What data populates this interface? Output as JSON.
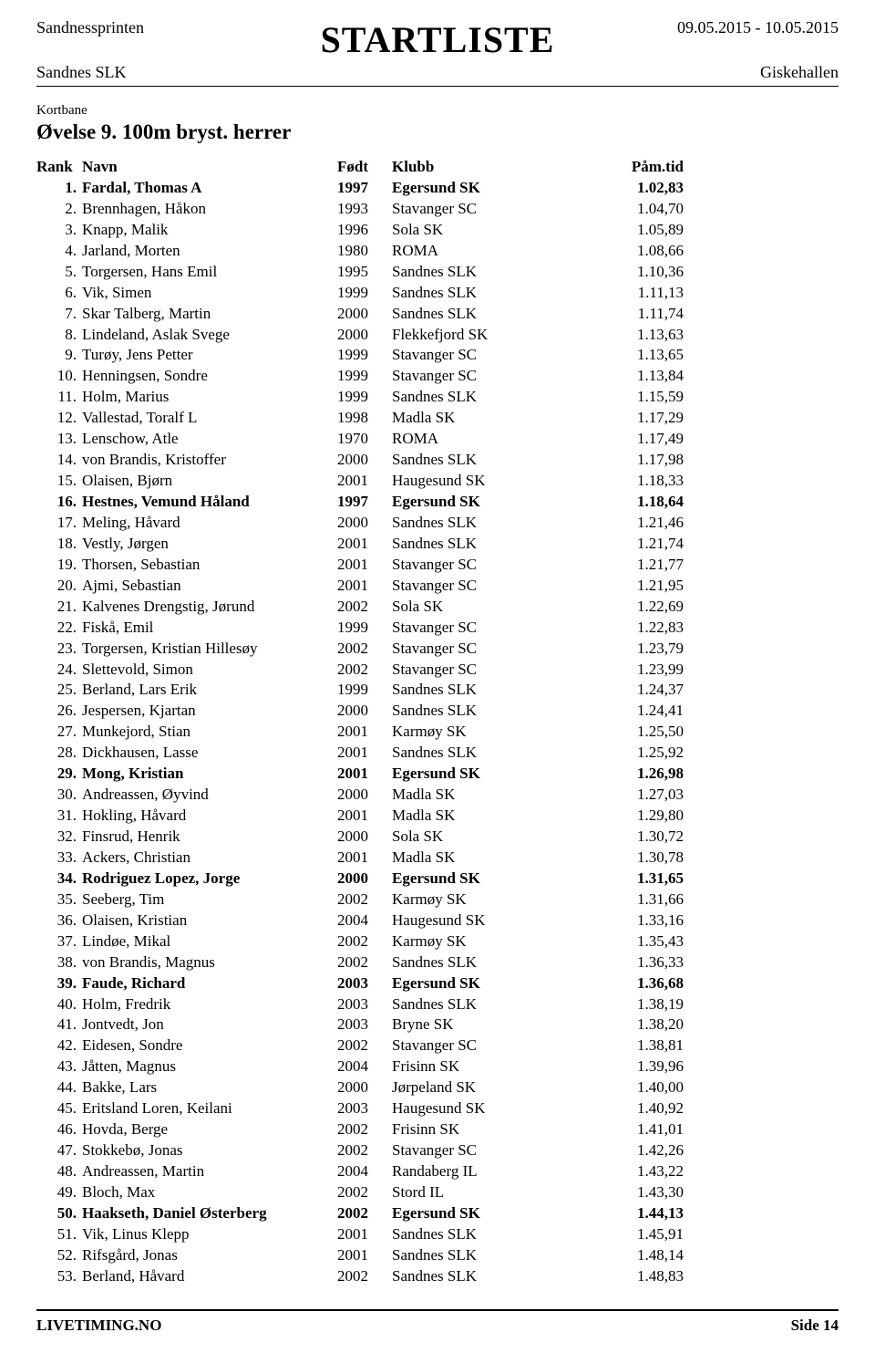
{
  "header": {
    "competition": "Sandnessprinten",
    "title": "STARTLISTE",
    "dates": "09.05.2015 - 10.05.2015",
    "club": "Sandnes SLK",
    "venue": "Giskehallen"
  },
  "meta": {
    "course": "Kortbane",
    "event_title": "Øvelse 9. 100m bryst. herrer"
  },
  "columns": {
    "rank": "Rank",
    "name": "Navn",
    "born": "Født",
    "club": "Klubb",
    "time": "Påm.tid"
  },
  "rows": [
    {
      "rank": "1.",
      "name": "Fardal, Thomas A",
      "born": "1997",
      "club": "Egersund SK",
      "time": "1.02,83",
      "bold": true
    },
    {
      "rank": "2.",
      "name": "Brennhagen, Håkon",
      "born": "1993",
      "club": "Stavanger SC",
      "time": "1.04,70",
      "bold": false
    },
    {
      "rank": "3.",
      "name": "Knapp, Malik",
      "born": "1996",
      "club": "Sola SK",
      "time": "1.05,89",
      "bold": false
    },
    {
      "rank": "4.",
      "name": "Jarland, Morten",
      "born": "1980",
      "club": "ROMA",
      "time": "1.08,66",
      "bold": false
    },
    {
      "rank": "5.",
      "name": "Torgersen, Hans Emil",
      "born": "1995",
      "club": "Sandnes SLK",
      "time": "1.10,36",
      "bold": false
    },
    {
      "rank": "6.",
      "name": "Vik, Simen",
      "born": "1999",
      "club": "Sandnes SLK",
      "time": "1.11,13",
      "bold": false
    },
    {
      "rank": "7.",
      "name": "Skar Talberg, Martin",
      "born": "2000",
      "club": "Sandnes SLK",
      "time": "1.11,74",
      "bold": false
    },
    {
      "rank": "8.",
      "name": "Lindeland, Aslak Svege",
      "born": "2000",
      "club": "Flekkefjord SK",
      "time": "1.13,63",
      "bold": false
    },
    {
      "rank": "9.",
      "name": "Turøy, Jens Petter",
      "born": "1999",
      "club": "Stavanger SC",
      "time": "1.13,65",
      "bold": false
    },
    {
      "rank": "10.",
      "name": "Henningsen, Sondre",
      "born": "1999",
      "club": "Stavanger SC",
      "time": "1.13,84",
      "bold": false
    },
    {
      "rank": "11.",
      "name": "Holm, Marius",
      "born": "1999",
      "club": "Sandnes SLK",
      "time": "1.15,59",
      "bold": false
    },
    {
      "rank": "12.",
      "name": "Vallestad, Toralf L",
      "born": "1998",
      "club": "Madla SK",
      "time": "1.17,29",
      "bold": false
    },
    {
      "rank": "13.",
      "name": "Lenschow, Atle",
      "born": "1970",
      "club": "ROMA",
      "time": "1.17,49",
      "bold": false
    },
    {
      "rank": "14.",
      "name": "von Brandis, Kristoffer",
      "born": "2000",
      "club": "Sandnes SLK",
      "time": "1.17,98",
      "bold": false
    },
    {
      "rank": "15.",
      "name": "Olaisen, Bjørn",
      "born": "2001",
      "club": "Haugesund SK",
      "time": "1.18,33",
      "bold": false
    },
    {
      "rank": "16.",
      "name": "Hestnes, Vemund Håland",
      "born": "1997",
      "club": "Egersund SK",
      "time": "1.18,64",
      "bold": true
    },
    {
      "rank": "17.",
      "name": "Meling, Håvard",
      "born": "2000",
      "club": "Sandnes SLK",
      "time": "1.21,46",
      "bold": false
    },
    {
      "rank": "18.",
      "name": "Vestly, Jørgen",
      "born": "2001",
      "club": "Sandnes SLK",
      "time": "1.21,74",
      "bold": false
    },
    {
      "rank": "19.",
      "name": "Thorsen, Sebastian",
      "born": "2001",
      "club": "Stavanger SC",
      "time": "1.21,77",
      "bold": false
    },
    {
      "rank": "20.",
      "name": "Ajmi, Sebastian",
      "born": "2001",
      "club": "Stavanger SC",
      "time": "1.21,95",
      "bold": false
    },
    {
      "rank": "21.",
      "name": "Kalvenes Drengstig, Jørund",
      "born": "2002",
      "club": "Sola SK",
      "time": "1.22,69",
      "bold": false
    },
    {
      "rank": "22.",
      "name": "Fiskå, Emil",
      "born": "1999",
      "club": "Stavanger SC",
      "time": "1.22,83",
      "bold": false
    },
    {
      "rank": "23.",
      "name": "Torgersen, Kristian Hillesøy",
      "born": "2002",
      "club": "Stavanger SC",
      "time": "1.23,79",
      "bold": false
    },
    {
      "rank": "24.",
      "name": "Slettevold, Simon",
      "born": "2002",
      "club": "Stavanger SC",
      "time": "1.23,99",
      "bold": false
    },
    {
      "rank": "25.",
      "name": "Berland, Lars Erik",
      "born": "1999",
      "club": "Sandnes SLK",
      "time": "1.24,37",
      "bold": false
    },
    {
      "rank": "26.",
      "name": "Jespersen, Kjartan",
      "born": "2000",
      "club": "Sandnes SLK",
      "time": "1.24,41",
      "bold": false
    },
    {
      "rank": "27.",
      "name": "Munkejord, Stian",
      "born": "2001",
      "club": "Karmøy SK",
      "time": "1.25,50",
      "bold": false
    },
    {
      "rank": "28.",
      "name": "Dickhausen, Lasse",
      "born": "2001",
      "club": "Sandnes SLK",
      "time": "1.25,92",
      "bold": false
    },
    {
      "rank": "29.",
      "name": "Mong, Kristian",
      "born": "2001",
      "club": "Egersund SK",
      "time": "1.26,98",
      "bold": true
    },
    {
      "rank": "30.",
      "name": "Andreassen, Øyvind",
      "born": "2000",
      "club": "Madla SK",
      "time": "1.27,03",
      "bold": false
    },
    {
      "rank": "31.",
      "name": "Hokling, Håvard",
      "born": "2001",
      "club": "Madla SK",
      "time": "1.29,80",
      "bold": false
    },
    {
      "rank": "32.",
      "name": "Finsrud, Henrik",
      "born": "2000",
      "club": "Sola SK",
      "time": "1.30,72",
      "bold": false
    },
    {
      "rank": "33.",
      "name": "Ackers, Christian",
      "born": "2001",
      "club": "Madla SK",
      "time": "1.30,78",
      "bold": false
    },
    {
      "rank": "34.",
      "name": "Rodriguez Lopez, Jorge",
      "born": "2000",
      "club": "Egersund SK",
      "time": "1.31,65",
      "bold": true
    },
    {
      "rank": "35.",
      "name": "Seeberg, Tim",
      "born": "2002",
      "club": "Karmøy SK",
      "time": "1.31,66",
      "bold": false
    },
    {
      "rank": "36.",
      "name": "Olaisen, Kristian",
      "born": "2004",
      "club": "Haugesund SK",
      "time": "1.33,16",
      "bold": false
    },
    {
      "rank": "37.",
      "name": "Lindøe, Mikal",
      "born": "2002",
      "club": "Karmøy SK",
      "time": "1.35,43",
      "bold": false
    },
    {
      "rank": "38.",
      "name": "von Brandis, Magnus",
      "born": "2002",
      "club": "Sandnes SLK",
      "time": "1.36,33",
      "bold": false
    },
    {
      "rank": "39.",
      "name": "Faude, Richard",
      "born": "2003",
      "club": "Egersund SK",
      "time": "1.36,68",
      "bold": true
    },
    {
      "rank": "40.",
      "name": "Holm, Fredrik",
      "born": "2003",
      "club": "Sandnes SLK",
      "time": "1.38,19",
      "bold": false
    },
    {
      "rank": "41.",
      "name": "Jontvedt, Jon",
      "born": "2003",
      "club": "Bryne SK",
      "time": "1.38,20",
      "bold": false
    },
    {
      "rank": "42.",
      "name": "Eidesen, Sondre",
      "born": "2002",
      "club": "Stavanger SC",
      "time": "1.38,81",
      "bold": false
    },
    {
      "rank": "43.",
      "name": "Jåtten, Magnus",
      "born": "2004",
      "club": "Frisinn SK",
      "time": "1.39,96",
      "bold": false
    },
    {
      "rank": "44.",
      "name": "Bakke, Lars",
      "born": "2000",
      "club": "Jørpeland SK",
      "time": "1.40,00",
      "bold": false
    },
    {
      "rank": "45.",
      "name": "Eritsland Loren, Keilani",
      "born": "2003",
      "club": "Haugesund SK",
      "time": "1.40,92",
      "bold": false
    },
    {
      "rank": "46.",
      "name": "Hovda, Berge",
      "born": "2002",
      "club": "Frisinn SK",
      "time": "1.41,01",
      "bold": false
    },
    {
      "rank": "47.",
      "name": "Stokkebø, Jonas",
      "born": "2002",
      "club": "Stavanger SC",
      "time": "1.42,26",
      "bold": false
    },
    {
      "rank": "48.",
      "name": "Andreassen, Martin",
      "born": "2004",
      "club": "Randaberg IL",
      "time": "1.43,22",
      "bold": false
    },
    {
      "rank": "49.",
      "name": "Bloch, Max",
      "born": "2002",
      "club": "Stord IL",
      "time": "1.43,30",
      "bold": false
    },
    {
      "rank": "50.",
      "name": "Haakseth, Daniel Østerberg",
      "born": "2002",
      "club": "Egersund SK",
      "time": "1.44,13",
      "bold": true
    },
    {
      "rank": "51.",
      "name": "Vik, Linus Klepp",
      "born": "2001",
      "club": "Sandnes SLK",
      "time": "1.45,91",
      "bold": false
    },
    {
      "rank": "52.",
      "name": "Rifsgård, Jonas",
      "born": "2001",
      "club": "Sandnes SLK",
      "time": "1.48,14",
      "bold": false
    },
    {
      "rank": "53.",
      "name": "Berland, Håvard",
      "born": "2002",
      "club": "Sandnes SLK",
      "time": "1.48,83",
      "bold": false
    }
  ],
  "footer": {
    "left": "LIVETIMING.NO",
    "right": "Side 14"
  }
}
